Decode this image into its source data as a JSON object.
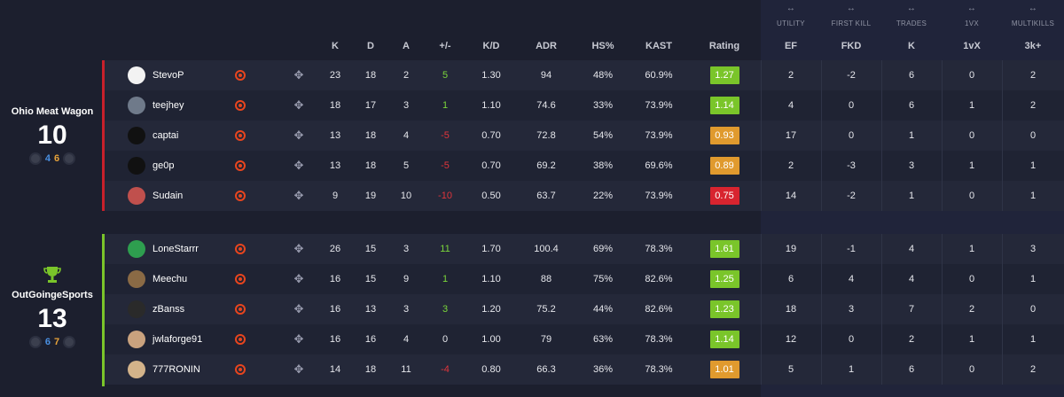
{
  "group_headers": [
    {
      "id": "utility",
      "arrow": "↔",
      "label": "UTILITY"
    },
    {
      "id": "first-kill",
      "arrow": "↔",
      "label": "FIRST KILL"
    },
    {
      "id": "trades",
      "arrow": "↔",
      "label": "TRADES"
    },
    {
      "id": "1vx",
      "arrow": "↔",
      "label": "1VX"
    },
    {
      "id": "multikills",
      "arrow": "↔",
      "label": "MULTIKILLS"
    }
  ],
  "columns": {
    "k": "K",
    "d": "D",
    "a": "A",
    "pm": "+/-",
    "kd": "K/D",
    "adr": "ADR",
    "hs": "HS%",
    "kast": "KAST",
    "rating": "Rating",
    "ef": "EF",
    "fkd": "FKD",
    "tk": "K",
    "vx": "1vX",
    "mk": "3k+"
  },
  "colors": {
    "rating_green": "#7ac52a",
    "rating_orange": "#e09a2e",
    "rating_red": "#d8242f",
    "team1_bar": "#c8202b",
    "team2_bar": "#7ac52a",
    "faceit": "#e8451e"
  },
  "teams": [
    {
      "name": "Ohio Meat Wagon",
      "score": "10",
      "ct_rounds": "4",
      "t_rounds": "6",
      "winner": false,
      "players": [
        {
          "name": "StevoP",
          "avatar_color": "#f2f2f2",
          "k": "23",
          "d": "18",
          "a": "2",
          "pm": "5",
          "pm_sign": "pos",
          "kd": "1.30",
          "adr": "94",
          "hs": "48%",
          "kast": "60.9%",
          "rating": "1.27",
          "rating_tier": "green",
          "ef": "2",
          "fkd": "-2",
          "tk": "6",
          "vx": "0",
          "mk": "2"
        },
        {
          "name": "teejhey",
          "avatar_color": "#6f7a8a",
          "k": "18",
          "d": "17",
          "a": "3",
          "pm": "1",
          "pm_sign": "pos",
          "kd": "1.10",
          "adr": "74.6",
          "hs": "33%",
          "kast": "73.9%",
          "rating": "1.14",
          "rating_tier": "green",
          "ef": "4",
          "fkd": "0",
          "tk": "6",
          "vx": "1",
          "mk": "2"
        },
        {
          "name": "captai",
          "avatar_color": "#111111",
          "k": "13",
          "d": "18",
          "a": "4",
          "pm": "-5",
          "pm_sign": "neg",
          "kd": "0.70",
          "adr": "72.8",
          "hs": "54%",
          "kast": "73.9%",
          "rating": "0.93",
          "rating_tier": "orange",
          "ef": "17",
          "fkd": "0",
          "tk": "1",
          "vx": "0",
          "mk": "0"
        },
        {
          "name": "ge0p",
          "avatar_color": "#111111",
          "k": "13",
          "d": "18",
          "a": "5",
          "pm": "-5",
          "pm_sign": "neg",
          "kd": "0.70",
          "adr": "69.2",
          "hs": "38%",
          "kast": "69.6%",
          "rating": "0.89",
          "rating_tier": "orange",
          "ef": "2",
          "fkd": "-3",
          "tk": "3",
          "vx": "1",
          "mk": "1"
        },
        {
          "name": "Sudain",
          "avatar_color": "#c0504d",
          "k": "9",
          "d": "19",
          "a": "10",
          "pm": "-10",
          "pm_sign": "neg",
          "kd": "0.50",
          "adr": "63.7",
          "hs": "22%",
          "kast": "73.9%",
          "rating": "0.75",
          "rating_tier": "red",
          "ef": "14",
          "fkd": "-2",
          "tk": "1",
          "vx": "0",
          "mk": "1"
        }
      ]
    },
    {
      "name": "OutGoingeSports",
      "score": "13",
      "ct_rounds": "6",
      "t_rounds": "7",
      "winner": true,
      "players": [
        {
          "name": "LoneStarrr",
          "avatar_color": "#2e9e4f",
          "k": "26",
          "d": "15",
          "a": "3",
          "pm": "11",
          "pm_sign": "pos",
          "kd": "1.70",
          "adr": "100.4",
          "hs": "69%",
          "kast": "78.3%",
          "rating": "1.61",
          "rating_tier": "green",
          "ef": "19",
          "fkd": "-1",
          "tk": "4",
          "vx": "1",
          "mk": "3"
        },
        {
          "name": "Meechu",
          "avatar_color": "#8a6a45",
          "k": "16",
          "d": "15",
          "a": "9",
          "pm": "1",
          "pm_sign": "pos",
          "kd": "1.10",
          "adr": "88",
          "hs": "75%",
          "kast": "82.6%",
          "rating": "1.25",
          "rating_tier": "green",
          "ef": "6",
          "fkd": "4",
          "tk": "4",
          "vx": "0",
          "mk": "1"
        },
        {
          "name": "zBanss",
          "avatar_color": "#2a2a2a",
          "k": "16",
          "d": "13",
          "a": "3",
          "pm": "3",
          "pm_sign": "pos",
          "kd": "1.20",
          "adr": "75.2",
          "hs": "44%",
          "kast": "82.6%",
          "rating": "1.23",
          "rating_tier": "green",
          "ef": "18",
          "fkd": "3",
          "tk": "7",
          "vx": "2",
          "mk": "0"
        },
        {
          "name": "jwlaforge91",
          "avatar_color": "#c9a27e",
          "k": "16",
          "d": "16",
          "a": "4",
          "pm": "0",
          "pm_sign": "zero",
          "kd": "1.00",
          "adr": "79",
          "hs": "63%",
          "kast": "78.3%",
          "rating": "1.14",
          "rating_tier": "green",
          "ef": "12",
          "fkd": "0",
          "tk": "2",
          "vx": "1",
          "mk": "1"
        },
        {
          "name": "777RONIN",
          "avatar_color": "#d3b38a",
          "k": "14",
          "d": "18",
          "a": "11",
          "pm": "-4",
          "pm_sign": "neg",
          "kd": "0.80",
          "adr": "66.3",
          "hs": "36%",
          "kast": "78.3%",
          "rating": "1.01",
          "rating_tier": "orange",
          "ef": "5",
          "fkd": "1",
          "tk": "6",
          "vx": "0",
          "mk": "2"
        }
      ]
    }
  ]
}
